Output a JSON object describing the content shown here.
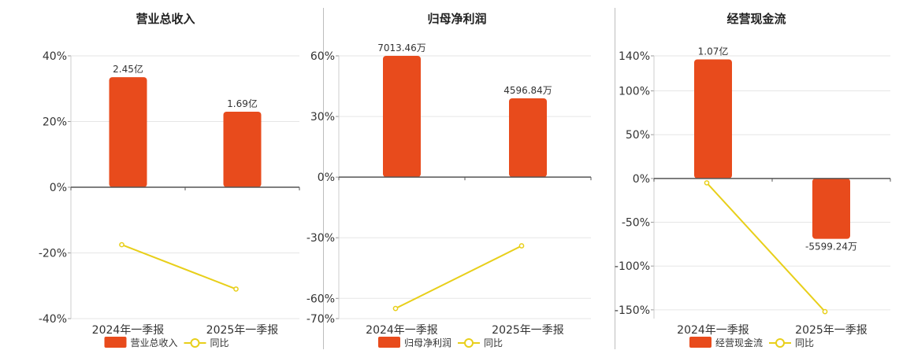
{
  "chart_data": [
    {
      "type": "bar",
      "title": "营业总收入",
      "categories": [
        "2024年一季报",
        "2025年一季报"
      ],
      "bar_axis": {
        "ylim": [
          -40,
          40
        ],
        "ticks": [
          40,
          20,
          0,
          -20,
          -40
        ],
        "tick_labels": [
          "40%",
          "20%",
          "0%",
          "-20%",
          "-40%"
        ]
      },
      "line_axis": {
        "ylim": [
          -40,
          40
        ]
      },
      "series": [
        {
          "name": "营业总收入",
          "kind": "bar",
          "color": "#E84B1C",
          "values": [
            33.5,
            23.0
          ],
          "labels": [
            "2.45亿",
            "1.69亿"
          ]
        },
        {
          "name": "同比",
          "kind": "line",
          "color": "#E8CF1A",
          "values": [
            -17.5,
            -31.0
          ]
        }
      ],
      "legend": "bottom-center",
      "grid": true
    },
    {
      "type": "bar",
      "title": "归母净利润",
      "categories": [
        "2024年一季报",
        "2025年一季报"
      ],
      "bar_axis": {
        "ylim": [
          -70,
          60
        ],
        "ticks": [
          60,
          30,
          0,
          -30,
          -60,
          -70
        ],
        "tick_labels": [
          "60%",
          "30%",
          "0%",
          "-30%",
          "-60%",
          "-70%"
        ]
      },
      "line_axis": {
        "ylim": [
          -70,
          60
        ]
      },
      "series": [
        {
          "name": "归母净利润",
          "kind": "bar",
          "color": "#E84B1C",
          "values": [
            60.0,
            39.0
          ],
          "labels": [
            "7013.46万",
            "4596.84万"
          ]
        },
        {
          "name": "同比",
          "kind": "line",
          "color": "#E8CF1A",
          "values": [
            -65.0,
            -34.0
          ]
        }
      ],
      "legend": "bottom-center",
      "grid": true
    },
    {
      "type": "bar",
      "title": "经营现金流",
      "categories": [
        "2024年一季报",
        "2025年一季报"
      ],
      "bar_axis": {
        "ylim": [
          -160,
          140
        ],
        "ticks": [
          140,
          100,
          50,
          0,
          -50,
          -100,
          -150
        ],
        "tick_labels": [
          "140%",
          "100%",
          "50%",
          "0%",
          "-50%",
          "-100%",
          "-150%"
        ]
      },
      "line_axis": {
        "ylim": [
          -160,
          140
        ]
      },
      "series": [
        {
          "name": "经营现金流",
          "kind": "bar",
          "color": "#E84B1C",
          "values": [
            136.0,
            -69.0
          ],
          "labels": [
            "1.07亿",
            "-5599.24万"
          ]
        },
        {
          "name": "同比",
          "kind": "line",
          "color": "#E8CF1A",
          "values": [
            -5.0,
            -152.0
          ]
        }
      ],
      "legend": "bottom-center",
      "grid": true
    }
  ]
}
